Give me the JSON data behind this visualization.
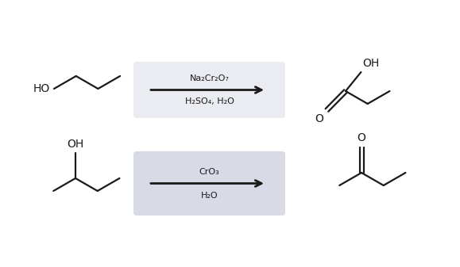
{
  "bg_color": "#ffffff",
  "top_box_color": "#eaecf2",
  "bottom_box_color": "#d8dbe5",
  "line_color": "#1a1a1a",
  "text_color": "#1a1a1a",
  "top_reagent_above": "Na₂Cr₂O₇",
  "top_reagent_below": "H₂SO₄, H₂O",
  "bottom_reagent_above": "CrO₃",
  "bottom_reagent_below": "H₂O",
  "font_size_mol": 10,
  "font_size_reagent": 8,
  "mol_lw": 1.6,
  "arrow_lw": 2.0,
  "fig_width": 5.79,
  "fig_height": 3.37,
  "dpi": 100
}
